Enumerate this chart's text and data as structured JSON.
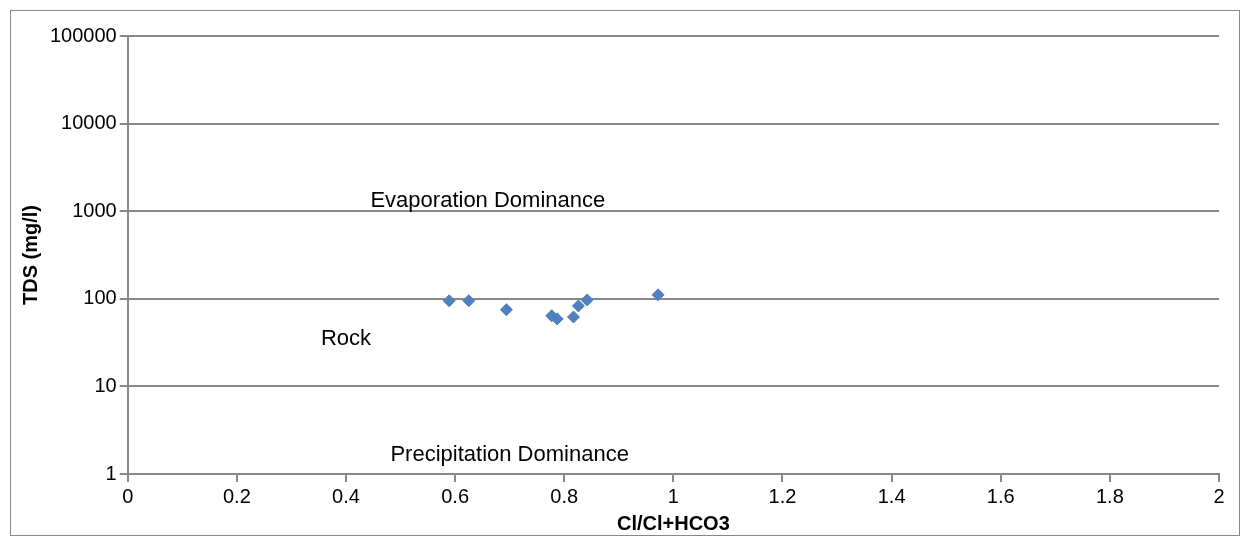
{
  "chart_data": {
    "type": "scatter",
    "xlabel": "Cl/Cl+HCO3",
    "ylabel": "TDS (mg/l)",
    "x": [
      0.589,
      0.625,
      0.694,
      0.777,
      0.787,
      0.817,
      0.826,
      0.842,
      0.972
    ],
    "values": [
      95,
      95,
      75,
      64,
      59,
      62,
      83,
      97,
      111
    ],
    "color": "#4f81bd",
    "marker": "diamond",
    "log": "y",
    "grid": "y",
    "legend": false,
    "xlim": [
      0,
      2
    ],
    "xticks": [
      0,
      0.2,
      0.4,
      0.6,
      0.8,
      1,
      1.2,
      1.4,
      1.6,
      1.8,
      2
    ],
    "ylim": [
      1,
      100000
    ],
    "yticks": [
      1,
      10,
      100,
      1000,
      10000,
      100000
    ],
    "annotations": [
      "Evaporation Dominance",
      "Rock",
      "Precipitation Dominance"
    ]
  }
}
